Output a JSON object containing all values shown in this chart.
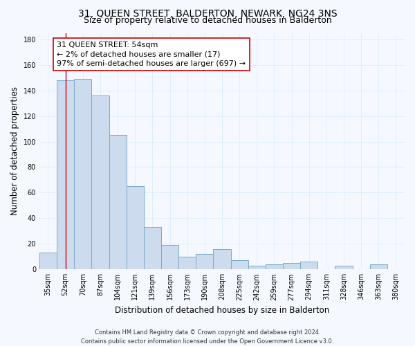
{
  "title": "31, QUEEN STREET, BALDERTON, NEWARK, NG24 3NS",
  "subtitle": "Size of property relative to detached houses in Balderton",
  "xlabel": "Distribution of detached houses by size in Balderton",
  "ylabel": "Number of detached properties",
  "bar_color": "#ccdcee",
  "bar_edge_color": "#7aaacc",
  "grid_color": "#ddeeff",
  "bg_color": "#f5f8ff",
  "categories": [
    "35sqm",
    "52sqm",
    "70sqm",
    "87sqm",
    "104sqm",
    "121sqm",
    "139sqm",
    "156sqm",
    "173sqm",
    "190sqm",
    "208sqm",
    "225sqm",
    "242sqm",
    "259sqm",
    "277sqm",
    "294sqm",
    "311sqm",
    "328sqm",
    "346sqm",
    "363sqm",
    "380sqm"
  ],
  "bar_values": [
    13,
    148,
    149,
    136,
    105,
    65,
    33,
    19,
    10,
    12,
    16,
    7,
    3,
    4,
    5,
    6,
    0,
    3,
    0,
    4,
    0
  ],
  "vline_x": 1,
  "vline_color": "#cc0000",
  "annotation_text": "31 QUEEN STREET: 54sqm\n← 2% of detached houses are smaller (17)\n97% of semi-detached houses are larger (697) →",
  "annotation_box_color": "#ffffff",
  "annotation_box_edge": "#cc0000",
  "ylim": [
    0,
    185
  ],
  "yticks": [
    0,
    20,
    40,
    60,
    80,
    100,
    120,
    140,
    160,
    180
  ],
  "footer": "Contains HM Land Registry data © Crown copyright and database right 2024.\nContains public sector information licensed under the Open Government Licence v3.0.",
  "title_fontsize": 10,
  "subtitle_fontsize": 9,
  "ylabel_fontsize": 8.5,
  "xlabel_fontsize": 8.5,
  "tick_fontsize": 7,
  "annotation_fontsize": 8,
  "footer_fontsize": 6
}
